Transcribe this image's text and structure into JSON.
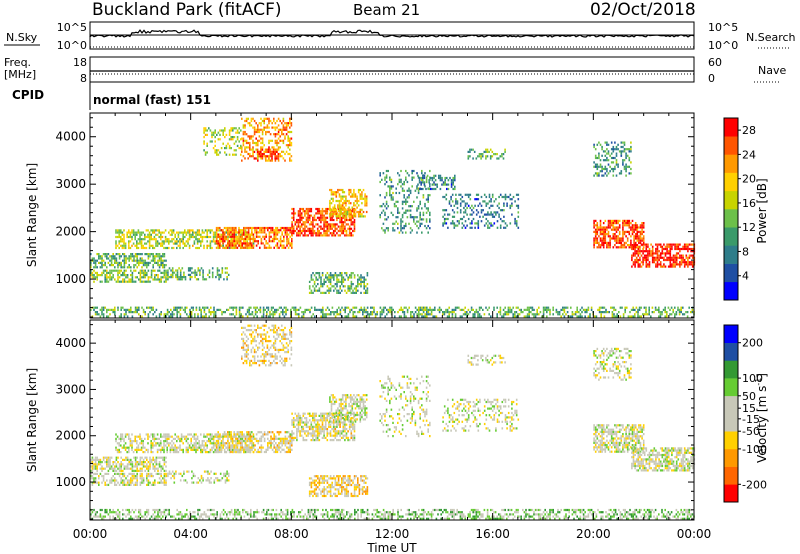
{
  "header": {
    "site": "Buckland Park (fitACF)",
    "beam": "Beam 21",
    "date": "02/Oct/2018"
  },
  "noise_panel": {
    "left_label": "N.Sky",
    "left_ticks": [
      "10^5",
      "10^0"
    ],
    "right_ticks": [
      "10^5",
      "10^0"
    ],
    "right_label": "N.Search"
  },
  "freq_panel": {
    "label_line1": "Freq.",
    "label_line2": "[MHz]",
    "left_ticks": [
      "18",
      "8"
    ],
    "right_ticks": [
      "60",
      "0"
    ],
    "right_label": "Nave"
  },
  "cpid_panel": {
    "label": "CPID",
    "mode": "normal (fast) 151"
  },
  "colors": {
    "power_scale": [
      "#0000ff",
      "#1f4fa3",
      "#2e7d8a",
      "#3a9a6a",
      "#6cc04a",
      "#c8d400",
      "#ffd000",
      "#ff9900",
      "#ff5500",
      "#ff0000"
    ],
    "velocity_scale": [
      "#ff0000",
      "#ff6600",
      "#ff9900",
      "#ffd000",
      "#c8c8b8",
      "#c8c8b8",
      "#66cc33",
      "#339933",
      "#1f4fa3",
      "#0000ff"
    ]
  },
  "chart_data": [
    {
      "type": "heatmap",
      "panel": "power",
      "ylabel": "Slant Range [km]",
      "xlabel": "Time UT",
      "x_ticks": [
        "00:00",
        "04:00",
        "08:00",
        "12:00",
        "16:00",
        "20:00",
        "00:00"
      ],
      "y_ticks": [
        1000,
        2000,
        3000,
        4000
      ],
      "ylim": [
        180,
        4500
      ],
      "xlim_hours": [
        0,
        24
      ],
      "colorbar_label": "Power [dB]",
      "colorbar_ticks": [
        4,
        8,
        12,
        16,
        20,
        24,
        28
      ],
      "colorbar_range": [
        0,
        30
      ],
      "regions": [
        {
          "t0": 0.0,
          "t1": 24.0,
          "r0": 200,
          "r1": 420,
          "value": 12,
          "density": 0.45
        },
        {
          "t0": 0.0,
          "t1": 3.0,
          "r0": 950,
          "r1": 1200,
          "value": 14,
          "density": 0.55
        },
        {
          "t0": 0.0,
          "t1": 3.0,
          "r0": 1250,
          "r1": 1550,
          "value": 12,
          "density": 0.6
        },
        {
          "t0": 3.0,
          "t1": 5.5,
          "r0": 1000,
          "r1": 1250,
          "value": 12,
          "density": 0.4
        },
        {
          "t0": 1.0,
          "t1": 6.5,
          "r0": 1650,
          "r1": 2050,
          "value": 16,
          "density": 0.55
        },
        {
          "t0": 5.0,
          "t1": 8.0,
          "r0": 1650,
          "r1": 2100,
          "value": 24,
          "density": 0.65
        },
        {
          "t0": 8.0,
          "t1": 10.5,
          "r0": 1900,
          "r1": 2500,
          "value": 26,
          "density": 0.65
        },
        {
          "t0": 9.5,
          "t1": 11.0,
          "r0": 2300,
          "r1": 2900,
          "value": 20,
          "density": 0.55
        },
        {
          "t0": 6.0,
          "t1": 8.0,
          "r0": 3500,
          "r1": 4400,
          "value": 22,
          "density": 0.45
        },
        {
          "t0": 6.5,
          "t1": 7.5,
          "r0": 3550,
          "r1": 3750,
          "value": 28,
          "density": 0.6
        },
        {
          "t0": 4.5,
          "t1": 6.0,
          "r0": 3600,
          "r1": 4200,
          "value": 16,
          "density": 0.3
        },
        {
          "t0": 8.7,
          "t1": 11.0,
          "r0": 700,
          "r1": 1150,
          "value": 12,
          "density": 0.55
        },
        {
          "t0": 11.5,
          "t1": 13.5,
          "r0": 2000,
          "r1": 3300,
          "value": 10,
          "density": 0.25
        },
        {
          "t0": 13.0,
          "t1": 14.5,
          "r0": 2900,
          "r1": 3200,
          "value": 8,
          "density": 0.4
        },
        {
          "t0": 14.0,
          "t1": 17.0,
          "r0": 2100,
          "r1": 2800,
          "value": 8,
          "density": 0.3
        },
        {
          "t0": 15.0,
          "t1": 16.5,
          "r0": 3550,
          "r1": 3750,
          "value": 12,
          "density": 0.4
        },
        {
          "t0": 20.0,
          "t1": 22.0,
          "r0": 1650,
          "r1": 2250,
          "value": 26,
          "density": 0.65
        },
        {
          "t0": 21.5,
          "t1": 24.0,
          "r0": 1250,
          "r1": 1750,
          "value": 28,
          "density": 0.65
        },
        {
          "t0": 20.0,
          "t1": 21.5,
          "r0": 3200,
          "r1": 3900,
          "value": 10,
          "density": 0.35
        }
      ]
    },
    {
      "type": "heatmap",
      "panel": "velocity",
      "ylabel": "Slant Range [km]",
      "xlabel": "Time UT",
      "x_ticks": [
        "00:00",
        "04:00",
        "08:00",
        "12:00",
        "16:00",
        "20:00",
        "00:00"
      ],
      "y_ticks": [
        1000,
        2000,
        3000,
        4000
      ],
      "ylim": [
        180,
        4500
      ],
      "xlim_hours": [
        0,
        24
      ],
      "colorbar_label": "Velocity [m s^-1]",
      "colorbar_ticks": [
        200,
        100,
        50,
        15,
        -15,
        -50,
        -100,
        -200
      ],
      "colorbar_range": [
        -250,
        250
      ],
      "regions": [
        {
          "t0": 0.0,
          "t1": 24.0,
          "r0": 200,
          "r1": 420,
          "value": 60,
          "density": 0.45
        },
        {
          "t0": 0.0,
          "t1": 3.0,
          "r0": 950,
          "r1": 1200,
          "value": 0,
          "density": 0.55
        },
        {
          "t0": 0.0,
          "t1": 3.0,
          "r0": 1250,
          "r1": 1550,
          "value": 0,
          "density": 0.6
        },
        {
          "t0": 3.0,
          "t1": 5.5,
          "r0": 1000,
          "r1": 1250,
          "value": 0,
          "density": 0.4
        },
        {
          "t0": 1.0,
          "t1": 6.5,
          "r0": 1650,
          "r1": 2050,
          "value": 0,
          "density": 0.55
        },
        {
          "t0": 5.0,
          "t1": 8.0,
          "r0": 1650,
          "r1": 2100,
          "value": -30,
          "density": 0.6
        },
        {
          "t0": 8.0,
          "t1": 10.5,
          "r0": 1900,
          "r1": 2500,
          "value": -20,
          "density": 0.6
        },
        {
          "t0": 9.5,
          "t1": 11.0,
          "r0": 2300,
          "r1": 2900,
          "value": 0,
          "density": 0.55
        },
        {
          "t0": 6.0,
          "t1": 8.0,
          "r0": 3500,
          "r1": 4400,
          "value": -40,
          "density": 0.4
        },
        {
          "t0": 8.7,
          "t1": 11.0,
          "r0": 700,
          "r1": 1150,
          "value": -60,
          "density": 0.55
        },
        {
          "t0": 11.5,
          "t1": 13.5,
          "r0": 2000,
          "r1": 3300,
          "value": 0,
          "density": 0.2
        },
        {
          "t0": 14.0,
          "t1": 17.0,
          "r0": 2100,
          "r1": 2800,
          "value": 0,
          "density": 0.25
        },
        {
          "t0": 15.0,
          "t1": 16.5,
          "r0": 3550,
          "r1": 3750,
          "value": 0,
          "density": 0.35
        },
        {
          "t0": 20.0,
          "t1": 22.0,
          "r0": 1650,
          "r1": 2250,
          "value": 0,
          "density": 0.65
        },
        {
          "t0": 21.5,
          "t1": 24.0,
          "r0": 1250,
          "r1": 1750,
          "value": 0,
          "density": 0.65
        },
        {
          "t0": 20.0,
          "t1": 21.5,
          "r0": 3200,
          "r1": 3900,
          "value": 0,
          "density": 0.3
        }
      ]
    }
  ]
}
